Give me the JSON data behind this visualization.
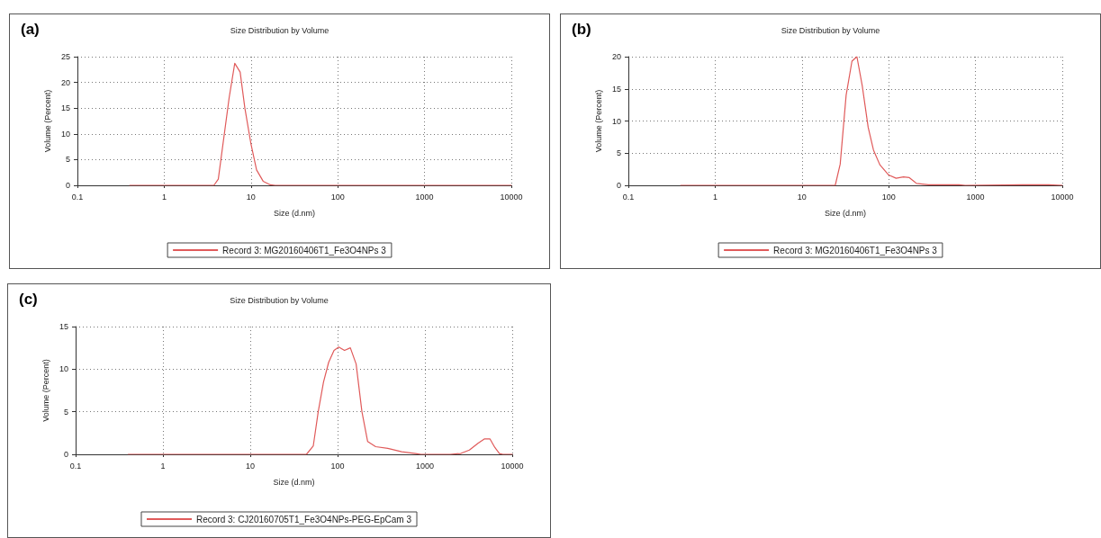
{
  "chart_data": [
    {
      "type": "line",
      "title": "Size Distribution by Volume",
      "xlabel": "Size (d.nm)",
      "ylabel": "Volume (Percent)",
      "annotations": [
        "(a)"
      ],
      "log": "x",
      "grid": true,
      "legend": "bottom",
      "marker": "none",
      "line_style": "solid",
      "xlim": [
        0.1,
        10000
      ],
      "xticks": [
        0.1,
        1,
        10,
        100,
        1000,
        10000
      ],
      "ylim": [
        0,
        25
      ],
      "yticks": [
        0,
        5,
        10,
        15,
        20,
        25
      ],
      "series": [
        {
          "name": "Record 3: MG20160406T1_Fe3O4NPs 3",
          "color": "#e05a5a",
          "x": [
            0.4,
            3.74,
            4.2,
            5.6,
            6.5,
            7.5,
            8.5,
            10,
            11.6,
            13.8,
            16.7,
            19,
            10000
          ],
          "values": [
            0,
            0,
            1.2,
            17,
            23.7,
            22,
            15,
            8,
            3,
            0.8,
            0.1,
            0,
            0
          ]
        }
      ]
    },
    {
      "type": "line",
      "title": "Size Distribution by Volume",
      "xlabel": "Size (d.nm)",
      "ylabel": "Volume (Percent)",
      "annotations": [
        "(b)"
      ],
      "log": "x",
      "grid": true,
      "legend": "bottom",
      "marker": "none",
      "line_style": "solid",
      "xlim": [
        0.1,
        10000
      ],
      "xticks": [
        0.1,
        1,
        10,
        100,
        1000,
        10000
      ],
      "ylim": [
        0,
        20
      ],
      "yticks": [
        0,
        5,
        10,
        15,
        20
      ],
      "series": [
        {
          "name": "Record 3: MG20160406T1_Fe3O4NPs 3",
          "color": "#e05a5a",
          "x": [
            0.4,
            24.2,
            27.6,
            32.3,
            37.7,
            43,
            49.5,
            58,
            66.7,
            79,
            100,
            121.6,
            148,
            172.7,
            209,
            287,
            647,
            760,
            3470,
            7000,
            10000
          ],
          "values": [
            0,
            0,
            3.3,
            14,
            19.3,
            20,
            15.5,
            9,
            5.5,
            3.2,
            1.6,
            1.1,
            1.3,
            1.2,
            0.3,
            0.1,
            0.1,
            0,
            0.1,
            0.1,
            0
          ]
        }
      ]
    },
    {
      "type": "line",
      "title": "Size Distribution by Volume",
      "xlabel": "Size (d.nm)",
      "ylabel": "Volume (Percent)",
      "annotations": [
        "(c)"
      ],
      "log": "x",
      "grid": true,
      "legend": "bottom",
      "marker": "none",
      "line_style": "solid",
      "xlim": [
        0.1,
        10000
      ],
      "xticks": [
        0.1,
        1,
        10,
        100,
        1000,
        10000
      ],
      "ylim": [
        0,
        15
      ],
      "yticks": [
        0,
        5,
        10,
        15
      ],
      "series": [
        {
          "name": "Record 3: CJ20160705T1_Fe3O4NPs-PEG-EpCam 3",
          "color": "#e05a5a",
          "x": [
            0.4,
            44,
            52.7,
            60,
            69,
            79,
            91,
            103,
            120,
            140,
            163,
            190,
            221,
            273,
            376,
            542,
            782,
            900,
            1950,
            2570,
            3230,
            4050,
            4780,
            5570,
            6330,
            7130,
            7800,
            10000
          ],
          "values": [
            0,
            0,
            1,
            5,
            8.5,
            10.8,
            12.2,
            12.6,
            12.2,
            12.5,
            10.6,
            5,
            1.5,
            0.9,
            0.7,
            0.3,
            0.1,
            0,
            0,
            0.1,
            0.5,
            1.3,
            1.8,
            1.8,
            0.8,
            0.1,
            0,
            0
          ]
        }
      ]
    }
  ]
}
